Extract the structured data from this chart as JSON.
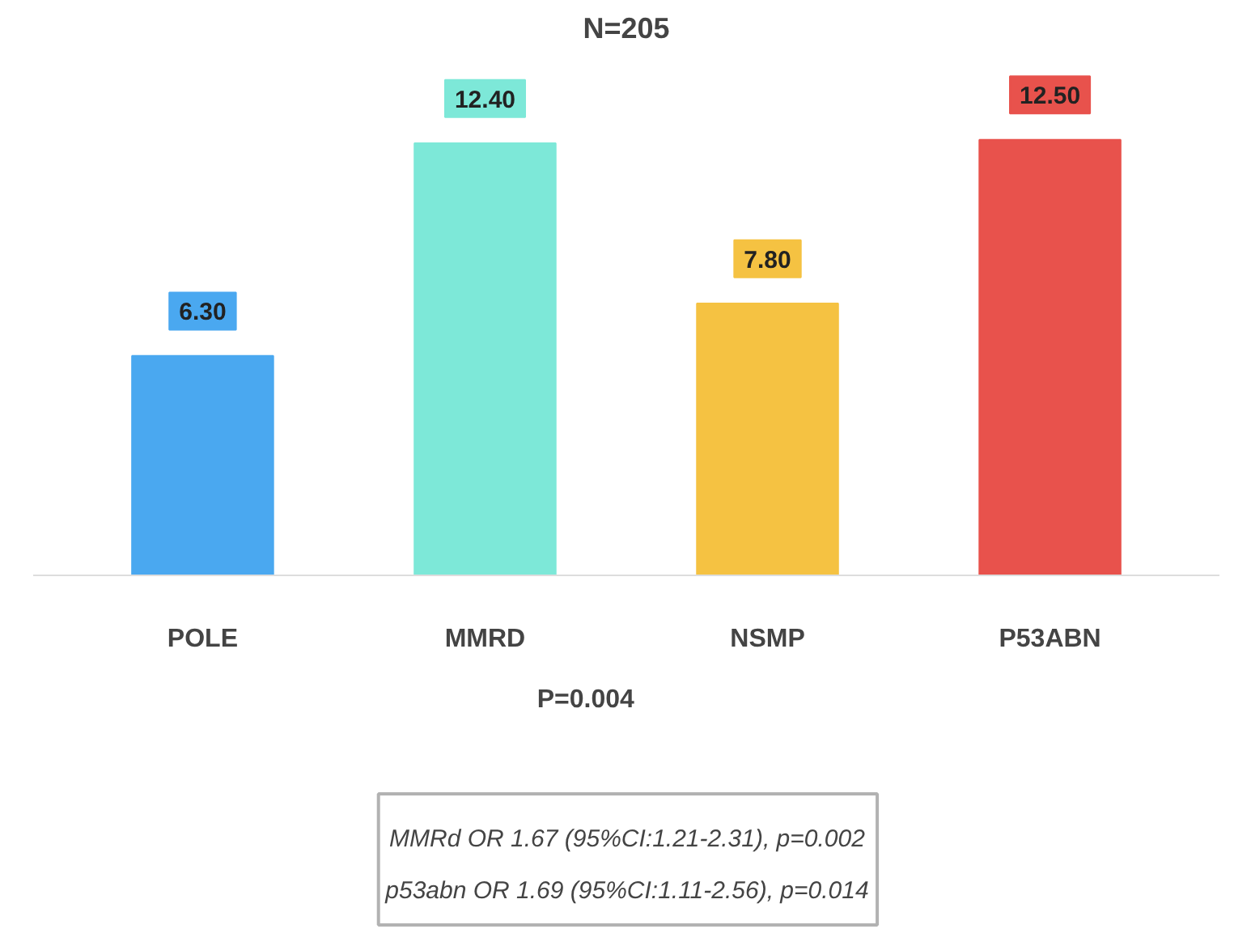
{
  "chart_data": {
    "type": "bar",
    "title": "N=205",
    "categories": [
      "POLE",
      "MMRD",
      "NSMP",
      "P53ABN"
    ],
    "values": [
      6.3,
      12.4,
      7.8,
      12.5
    ],
    "value_labels": [
      "6.30",
      "12.40",
      "7.80",
      "12.50"
    ],
    "colors": [
      "#4aa8f0",
      "#7de8d8",
      "#f5c242",
      "#e8524c"
    ],
    "annotations": [
      "P=0.004",
      "MMRd OR 1.67 (95%CI:1.21-2.31), p=0.002",
      "p53abn OR 1.69 (95%CI:1.11-2.56), p=0.014"
    ]
  }
}
